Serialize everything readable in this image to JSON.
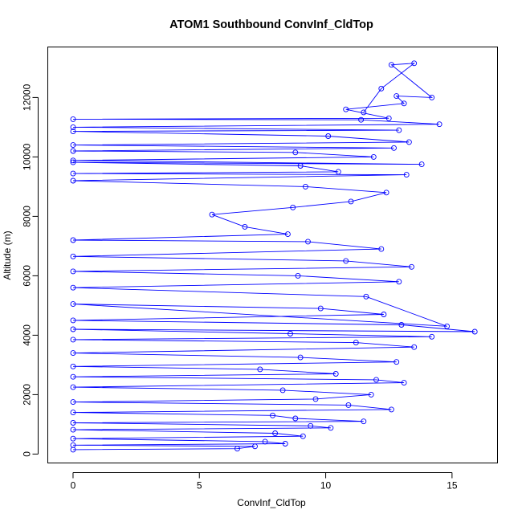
{
  "chart_data": {
    "type": "line",
    "title": "ATOM1 Southbound ConvInf_CldTop",
    "xlabel": "ConvInf_CldTop",
    "ylabel": "Altitude (m)",
    "xlim": [
      -1.0,
      16.8
    ],
    "ylim": [
      -300,
      13700
    ],
    "xticks": [
      0,
      5,
      10,
      15
    ],
    "yticks": [
      0,
      2000,
      4000,
      6000,
      8000,
      10000,
      12000
    ],
    "grid": false,
    "marker": "open-circle",
    "series_color": "#0000ff",
    "series": [
      {
        "values": [
          [
            0,
            150
          ],
          [
            6.5,
            180
          ],
          [
            7.2,
            260
          ],
          [
            0,
            300
          ],
          [
            8.4,
            350
          ],
          [
            7.6,
            420
          ],
          [
            0,
            520
          ],
          [
            9.1,
            600
          ],
          [
            8.0,
            700
          ],
          [
            0,
            820
          ],
          [
            10.2,
            880
          ],
          [
            9.4,
            950
          ],
          [
            0,
            1050
          ],
          [
            11.5,
            1100
          ],
          [
            8.8,
            1200
          ],
          [
            7.9,
            1300
          ],
          [
            0,
            1400
          ],
          [
            12.6,
            1500
          ],
          [
            10.9,
            1650
          ],
          [
            0,
            1750
          ],
          [
            9.6,
            1850
          ],
          [
            11.8,
            2000
          ],
          [
            8.3,
            2150
          ],
          [
            0,
            2250
          ],
          [
            13.1,
            2400
          ],
          [
            12.0,
            2500
          ],
          [
            0,
            2600
          ],
          [
            10.4,
            2700
          ],
          [
            7.4,
            2850
          ],
          [
            0,
            2950
          ],
          [
            12.8,
            3100
          ],
          [
            9.0,
            3250
          ],
          [
            0,
            3400
          ],
          [
            13.5,
            3600
          ],
          [
            11.2,
            3750
          ],
          [
            0,
            3850
          ],
          [
            14.2,
            3950
          ],
          [
            8.6,
            4050
          ],
          [
            0,
            4200
          ],
          [
            15.9,
            4120
          ],
          [
            13.0,
            4350
          ],
          [
            0,
            4500
          ],
          [
            12.3,
            4700
          ],
          [
            9.8,
            4900
          ],
          [
            0,
            5050
          ],
          [
            14.8,
            4300
          ],
          [
            11.6,
            5300
          ],
          [
            0,
            5600
          ],
          [
            12.9,
            5800
          ],
          [
            8.9,
            6000
          ],
          [
            0,
            6150
          ],
          [
            13.4,
            6300
          ],
          [
            10.8,
            6500
          ],
          [
            0,
            6650
          ],
          [
            12.2,
            6900
          ],
          [
            9.3,
            7150
          ],
          [
            0,
            7200
          ],
          [
            8.5,
            7400
          ],
          [
            6.8,
            7650
          ],
          [
            5.5,
            8060
          ],
          [
            8.7,
            8300
          ],
          [
            11.0,
            8500
          ],
          [
            12.4,
            8800
          ],
          [
            9.2,
            9000
          ],
          [
            0,
            9200
          ],
          [
            13.2,
            9400
          ],
          [
            0,
            9440
          ],
          [
            10.5,
            9500
          ],
          [
            9.0,
            9700
          ],
          [
            0,
            9820
          ],
          [
            13.8,
            9750
          ],
          [
            0,
            9880
          ],
          [
            11.9,
            10000
          ],
          [
            8.8,
            10150
          ],
          [
            0,
            10200
          ],
          [
            12.7,
            10300
          ],
          [
            0,
            10400
          ],
          [
            13.3,
            10500
          ],
          [
            10.1,
            10700
          ],
          [
            0,
            10860
          ],
          [
            12.9,
            10900
          ],
          [
            0,
            11000
          ],
          [
            14.5,
            11100
          ],
          [
            11.4,
            11250
          ],
          [
            0,
            11270
          ],
          [
            12.5,
            11300
          ],
          [
            10.8,
            11600
          ],
          [
            13.1,
            11800
          ],
          [
            12.8,
            12050
          ],
          [
            14.2,
            12000
          ],
          [
            12.6,
            13100
          ],
          [
            13.5,
            13150
          ],
          [
            12.2,
            12300
          ],
          [
            11.5,
            11500
          ]
        ]
      }
    ]
  }
}
